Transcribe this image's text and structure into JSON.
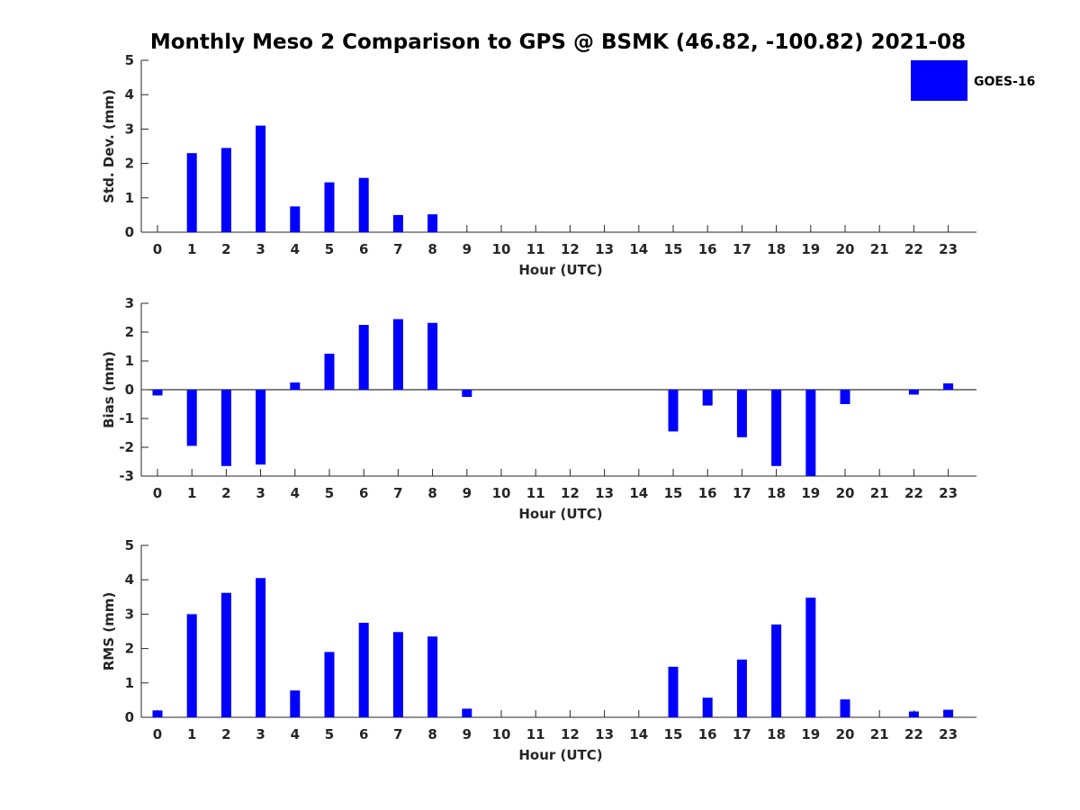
{
  "title": "Monthly Meso 2 Comparison to GPS @ BSMK (46.82, -100.82) 2021-08",
  "legend": {
    "label": "GOES-16",
    "color": "#0000ff",
    "placement": "top-right"
  },
  "chart_data": [
    {
      "type": "bar",
      "xlabel": "Hour (UTC)",
      "ylabel": "Std. Dev. (mm)",
      "ylim": [
        0,
        5
      ],
      "yticks": [
        0,
        1,
        2,
        3,
        4,
        5
      ],
      "categories": [
        "0",
        "1",
        "2",
        "3",
        "4",
        "5",
        "6",
        "7",
        "8",
        "9",
        "10",
        "11",
        "12",
        "13",
        "14",
        "15",
        "16",
        "17",
        "18",
        "19",
        "20",
        "21",
        "22",
        "23"
      ],
      "series": [
        {
          "name": "GOES-16",
          "color": "#0000ff",
          "values": [
            0,
            2.3,
            2.45,
            3.1,
            0.75,
            1.45,
            1.58,
            0.5,
            0.52,
            0,
            0,
            0,
            0,
            0,
            0,
            0,
            0,
            0,
            0,
            0,
            0,
            0,
            0,
            0
          ]
        }
      ]
    },
    {
      "type": "bar",
      "xlabel": "Hour (UTC)",
      "ylabel": "Bias (mm)",
      "ylim": [
        -3,
        3
      ],
      "yticks": [
        -3,
        -2,
        -1,
        0,
        1,
        2,
        3
      ],
      "categories": [
        "0",
        "1",
        "2",
        "3",
        "4",
        "5",
        "6",
        "7",
        "8",
        "9",
        "10",
        "11",
        "12",
        "13",
        "14",
        "15",
        "16",
        "17",
        "18",
        "19",
        "20",
        "21",
        "22",
        "23"
      ],
      "series": [
        {
          "name": "GOES-16",
          "color": "#0000ff",
          "values": [
            -0.2,
            -1.95,
            -2.65,
            -2.6,
            0.25,
            1.25,
            2.25,
            2.45,
            2.32,
            -0.25,
            0,
            0,
            0,
            0,
            0,
            -1.45,
            -0.55,
            -1.65,
            -2.65,
            -3.0,
            -0.5,
            0,
            -0.17,
            0.22
          ]
        }
      ]
    },
    {
      "type": "bar",
      "xlabel": "Hour (UTC)",
      "ylabel": "RMS (mm)",
      "ylim": [
        0,
        5
      ],
      "yticks": [
        0,
        1,
        2,
        3,
        4,
        5
      ],
      "categories": [
        "0",
        "1",
        "2",
        "3",
        "4",
        "5",
        "6",
        "7",
        "8",
        "9",
        "10",
        "11",
        "12",
        "13",
        "14",
        "15",
        "16",
        "17",
        "18",
        "19",
        "20",
        "21",
        "22",
        "23"
      ],
      "series": [
        {
          "name": "GOES-16",
          "color": "#0000ff",
          "values": [
            0.2,
            3.0,
            3.62,
            4.05,
            0.78,
            1.9,
            2.75,
            2.48,
            2.35,
            0.25,
            0,
            0,
            0,
            0,
            0,
            1.47,
            0.57,
            1.68,
            2.7,
            3.48,
            0.52,
            0,
            0.17,
            0.22
          ]
        }
      ]
    }
  ]
}
